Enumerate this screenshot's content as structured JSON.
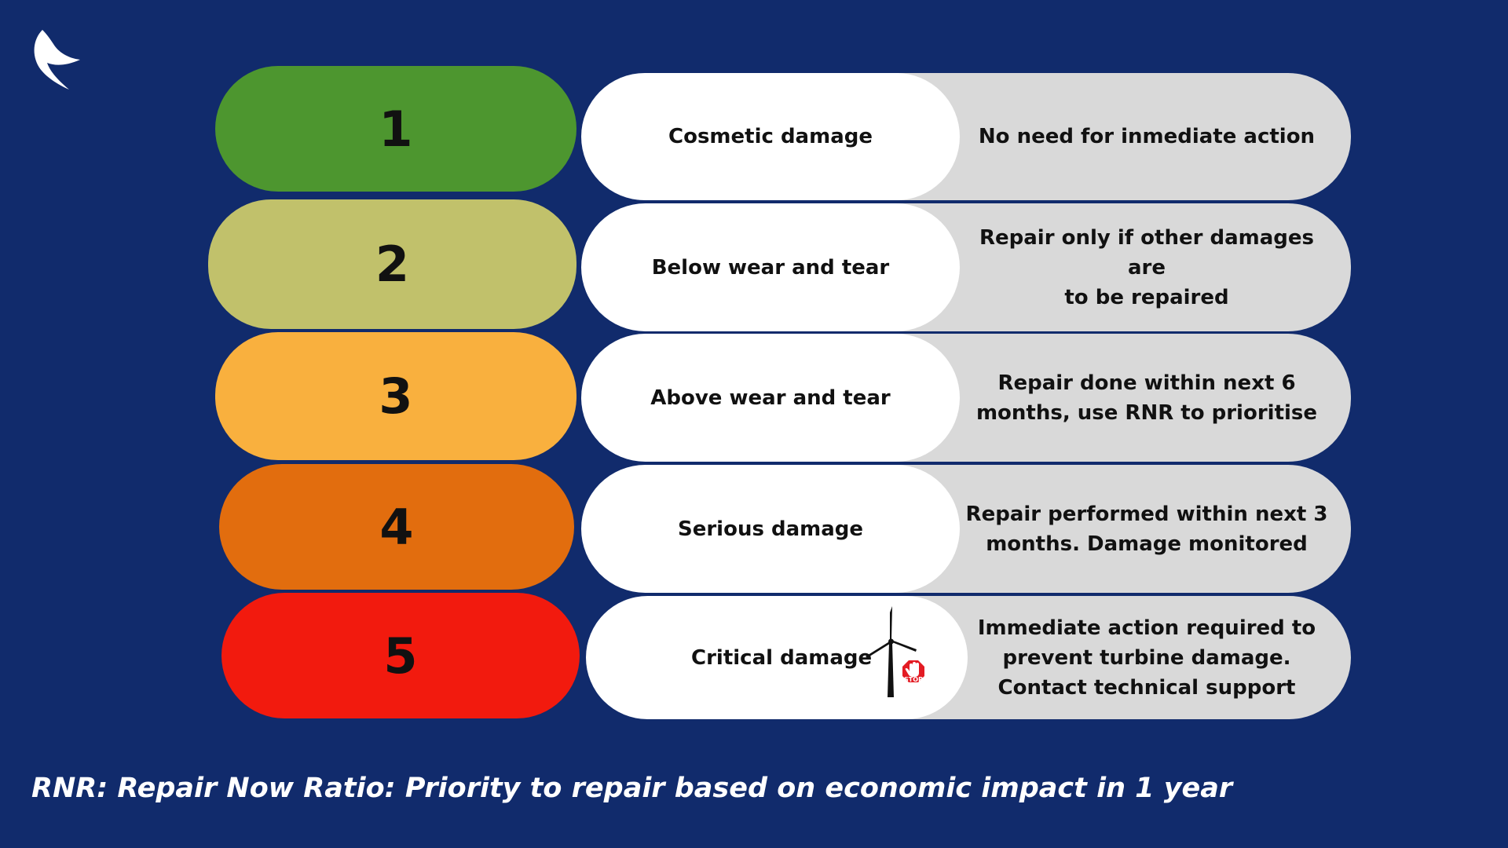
{
  "background_color": "#112b6c",
  "logo": {
    "icon": "swoosh-arrow-logo-icon",
    "color": "#ffffff"
  },
  "levels": [
    {
      "number": "1",
      "category": "Cosmetic damage",
      "description": "No need for inmediate action",
      "color": "#4d962f"
    },
    {
      "number": "2",
      "category": "Below wear and tear",
      "description": "Repair only if other damages are\nto be repaired",
      "color": "#c1c16b"
    },
    {
      "number": "3",
      "category": "Above wear and tear",
      "description": "Repair done within next 6\nmonths, use RNR to prioritise",
      "color": "#f9b03e"
    },
    {
      "number": "4",
      "category": "Serious damage",
      "description": "Repair performed within next 3\nmonths. Damage monitored",
      "color": "#e26d0e"
    },
    {
      "number": "5",
      "category": "Critical damage",
      "description": "Immediate action required to\nprevent turbine damage.\nContact technical support",
      "color": "#f21a0e"
    }
  ],
  "stop_sign": {
    "icon": "wind-turbine-stop-icon",
    "text": "STOP",
    "color": "#e31b23"
  },
  "footnote": "RNR: Repair Now Ratio: Priority to repair based on economic impact in 1 year"
}
